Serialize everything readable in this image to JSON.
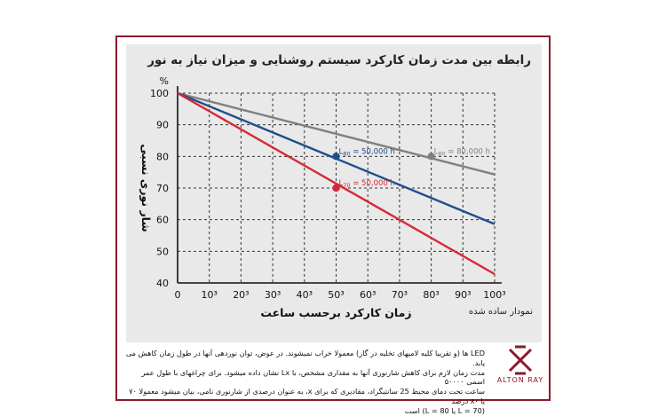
{
  "chart_data": {
    "type": "line",
    "title": "رابطه بین مدت زمان کارکرد سیستم روشنایی و میزان نیاز به نور",
    "xlabel": "زمان کارکرد برحسب ساعت",
    "ylabel": "شار نوری نسبی",
    "y_unit": "%",
    "xlim": [
      0,
      100000
    ],
    "ylim": [
      40,
      100
    ],
    "x_tick_labels": [
      "0",
      "10³",
      "20³",
      "30³",
      "40³",
      "50³",
      "60³",
      "70³",
      "80³",
      "90³",
      "100³"
    ],
    "y_tick_labels": [
      "40",
      "50",
      "60",
      "70",
      "80",
      "90",
      "100"
    ],
    "grid": "dashed",
    "series": [
      {
        "color": "#808080",
        "points": [
          [
            0,
            100
          ],
          [
            100000,
            74.3
          ]
        ]
      },
      {
        "color": "#1f4e8c",
        "points": [
          [
            0,
            100
          ],
          [
            100000,
            58.6
          ]
        ]
      },
      {
        "color": "#d42a37",
        "points": [
          [
            0,
            100
          ],
          [
            100000,
            42.8
          ]
        ]
      }
    ],
    "markers": [
      {
        "x": 80000,
        "y": 80,
        "color": "#808080",
        "label": "L",
        "sub": "80",
        "suffix": " = 80,000 h"
      },
      {
        "x": 50000,
        "y": 80,
        "color": "#1f4e8c",
        "label": "L",
        "sub": "80",
        "suffix": " = 50,000 h"
      },
      {
        "x": 50000,
        "y": 70,
        "color": "#d42a37",
        "label": "L",
        "sub": "70",
        "suffix": " = 50,000 h"
      }
    ]
  },
  "footnote": "نمودار ساده شده",
  "caption": [
    "LED ها (و تقریبا کلیه لامپهای تخلیه در گاز) معمولا خراب نمیشوند. در عوض، توان نوردهی آنها در طول زمان کاهش می یابد.",
    "مدت زمان لازم برای کاهش شارنوری آنها به مقداری مشخص، با Lx نشان داده میشود. برای چراغهای با طول عمر اسمی ۵۰۰۰۰",
    "ساعت تحت دمای محیط 25 سانتیگراد، مقادیری که برای x، به عنوان درصدی از شارنوری نامی، بیان میشود معمولا ۷۰ یا ۸۰ درصد",
    "(L = 70 یا L = 80) است"
  ],
  "logo": {
    "name": "ALTON RAY"
  }
}
